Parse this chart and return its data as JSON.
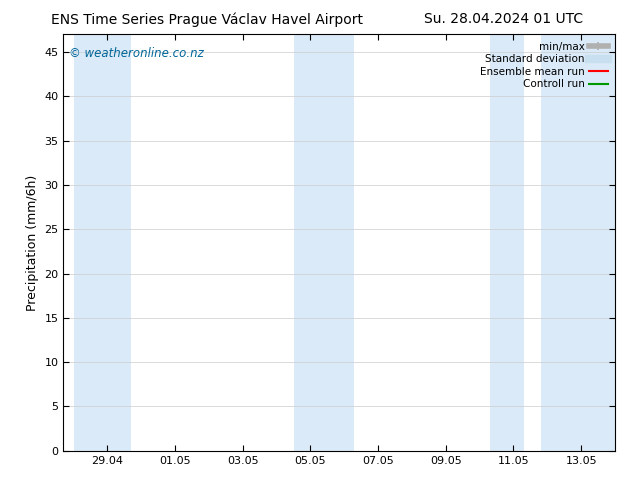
{
  "title_left": "ENS Time Series Prague Václav Havel Airport",
  "title_right": "Su. 28.04.2024 01 UTC",
  "ylabel": "Precipitation (mm/6h)",
  "ylim": [
    0,
    47
  ],
  "yticks": [
    0,
    5,
    10,
    15,
    20,
    25,
    30,
    35,
    40,
    45
  ],
  "xtick_positions": [
    1,
    3,
    5,
    7,
    9,
    11,
    13,
    15
  ],
  "xtick_labels": [
    "29.04",
    "01.05",
    "03.05",
    "05.05",
    "07.05",
    "09.05",
    "11.05",
    "13.05"
  ],
  "xlim": [
    -0.3,
    16.0
  ],
  "watermark": "© weatheronline.co.nz",
  "watermark_color": "#006699",
  "bg_color": "#ffffff",
  "plot_bg_color": "#ffffff",
  "shade_color": "#daeaf8",
  "shaded_regions": [
    [
      0.0,
      1.7
    ],
    [
      6.5,
      8.3
    ],
    [
      12.3,
      13.3
    ],
    [
      13.8,
      16.0
    ]
  ],
  "legend_items": [
    {
      "label": "min/max",
      "color": "#b0b0b0",
      "lw": 4,
      "style": "line_with_caps"
    },
    {
      "label": "Standard deviation",
      "color": "#c8dff0",
      "lw": 6,
      "style": "line"
    },
    {
      "label": "Ensemble mean run",
      "color": "#ff0000",
      "lw": 1.5,
      "style": "line"
    },
    {
      "label": "Controll run",
      "color": "#009900",
      "lw": 1.5,
      "style": "line"
    }
  ],
  "title_fontsize": 10,
  "legend_fontsize": 7.5,
  "ylabel_fontsize": 9,
  "tick_labelsize": 8
}
